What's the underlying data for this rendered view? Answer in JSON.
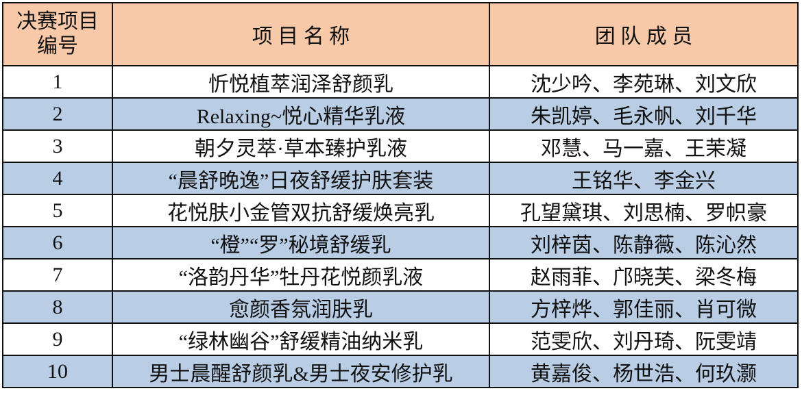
{
  "table": {
    "header": [
      "决赛项目编号",
      "项 目 名 称",
      "团 队 成 员"
    ],
    "rows": [
      [
        1,
        "忻悦植萃润泽舒颜乳",
        "沈少吟、李苑琳、刘文欣"
      ],
      [
        2,
        "Relaxing~悦心精华乳液",
        "朱凯婷、毛永帆、刘千华"
      ],
      [
        3,
        "朝夕灵萃·草本臻护乳液",
        "邓慧、马一嘉、王茉凝"
      ],
      [
        4,
        "“晨舒晚逸”日夜舒缓护肤套装",
        "王铭华、李金兴"
      ],
      [
        5,
        "花悦肤小金管双抗舒缓焕亮乳",
        "孔望黛琪、刘思楠、罗帜豪"
      ],
      [
        6,
        "“橙”“罗”秘境舒缓乳",
        "刘梓茵、陈静薇、陈沁然"
      ],
      [
        7,
        "“洛韵丹华”牡丹花悦颜乳液",
        "赵雨菲、邝晓芙、梁冬梅"
      ],
      [
        8,
        "愈颜香氛润肤乳",
        "方梓烨、郭佳丽、肖可微"
      ],
      [
        9,
        "“绿林幽谷”舒缓精油纳米乳",
        "范雯欣、刘丹琦、阮雯靖"
      ],
      [
        10,
        "男士晨醒舒颜乳&男士夜安修护乳",
        "黄嘉俊、杨世浩、何玖灏"
      ]
    ]
  }
}
